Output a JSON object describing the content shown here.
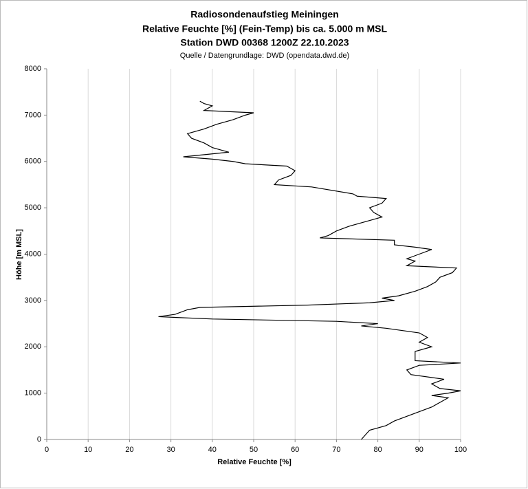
{
  "chart_data": {
    "type": "line",
    "title": "Radiosondenaufstieg Meiningen",
    "subtitle": "Relative Feuchte [%] (Fein-Temp) bis ca. 5.000 m MSL",
    "subtitle2": "Station DWD 00368 1200Z 22.10.2023",
    "source": "Quelle / Datengrundlage: DWD (opendata.dwd.de)",
    "x_label": "Relative Feuchte [%]",
    "y_label": "Höhe [m MSL]",
    "color": "#000000",
    "grid": true,
    "xlim": [
      0,
      100
    ],
    "xticks": [
      0,
      10,
      20,
      30,
      40,
      50,
      60,
      70,
      80,
      90,
      100
    ],
    "ylim": [
      0,
      8000
    ],
    "yticks": [
      0,
      1000,
      2000,
      3000,
      4000,
      5000,
      6000,
      7000,
      8000
    ],
    "x": [
      76,
      77,
      78,
      82,
      84,
      87,
      90,
      93,
      95,
      97,
      93,
      97,
      100,
      95,
      93,
      96,
      88,
      87,
      90,
      100,
      89,
      89,
      89,
      93,
      90,
      92,
      90,
      82,
      76,
      80,
      70,
      40,
      27,
      31,
      34,
      37,
      63,
      78,
      84,
      81,
      85,
      89,
      92,
      94,
      95,
      98,
      99,
      87,
      89,
      87,
      90,
      93,
      89,
      84,
      84,
      66,
      68,
      70,
      73,
      77,
      81,
      79,
      78,
      81,
      82,
      75,
      74,
      64,
      55,
      56,
      59,
      60,
      58,
      48,
      45,
      40,
      33,
      44,
      40,
      38,
      35,
      34,
      38,
      41,
      45,
      48,
      50,
      38,
      40,
      38,
      37
    ],
    "values": [
      0,
      100,
      200,
      300,
      400,
      500,
      600,
      700,
      800,
      900,
      950,
      1000,
      1050,
      1100,
      1200,
      1300,
      1400,
      1500,
      1600,
      1650,
      1700,
      1800,
      1900,
      2000,
      2100,
      2200,
      2300,
      2400,
      2450,
      2500,
      2550,
      2600,
      2650,
      2700,
      2800,
      2850,
      2900,
      2950,
      3000,
      3050,
      3100,
      3200,
      3300,
      3400,
      3500,
      3600,
      3700,
      3750,
      3850,
      3900,
      4000,
      4100,
      4150,
      4200,
      4300,
      4350,
      4400,
      4500,
      4600,
      4700,
      4800,
      4900,
      5000,
      5100,
      5200,
      5250,
      5300,
      5450,
      5500,
      5600,
      5700,
      5800,
      5900,
      5950,
      6000,
      6050,
      6100,
      6200,
      6300,
      6400,
      6500,
      6600,
      6700,
      6800,
      6900,
      7000,
      7050,
      7100,
      7200,
      7250,
      7300
    ]
  }
}
